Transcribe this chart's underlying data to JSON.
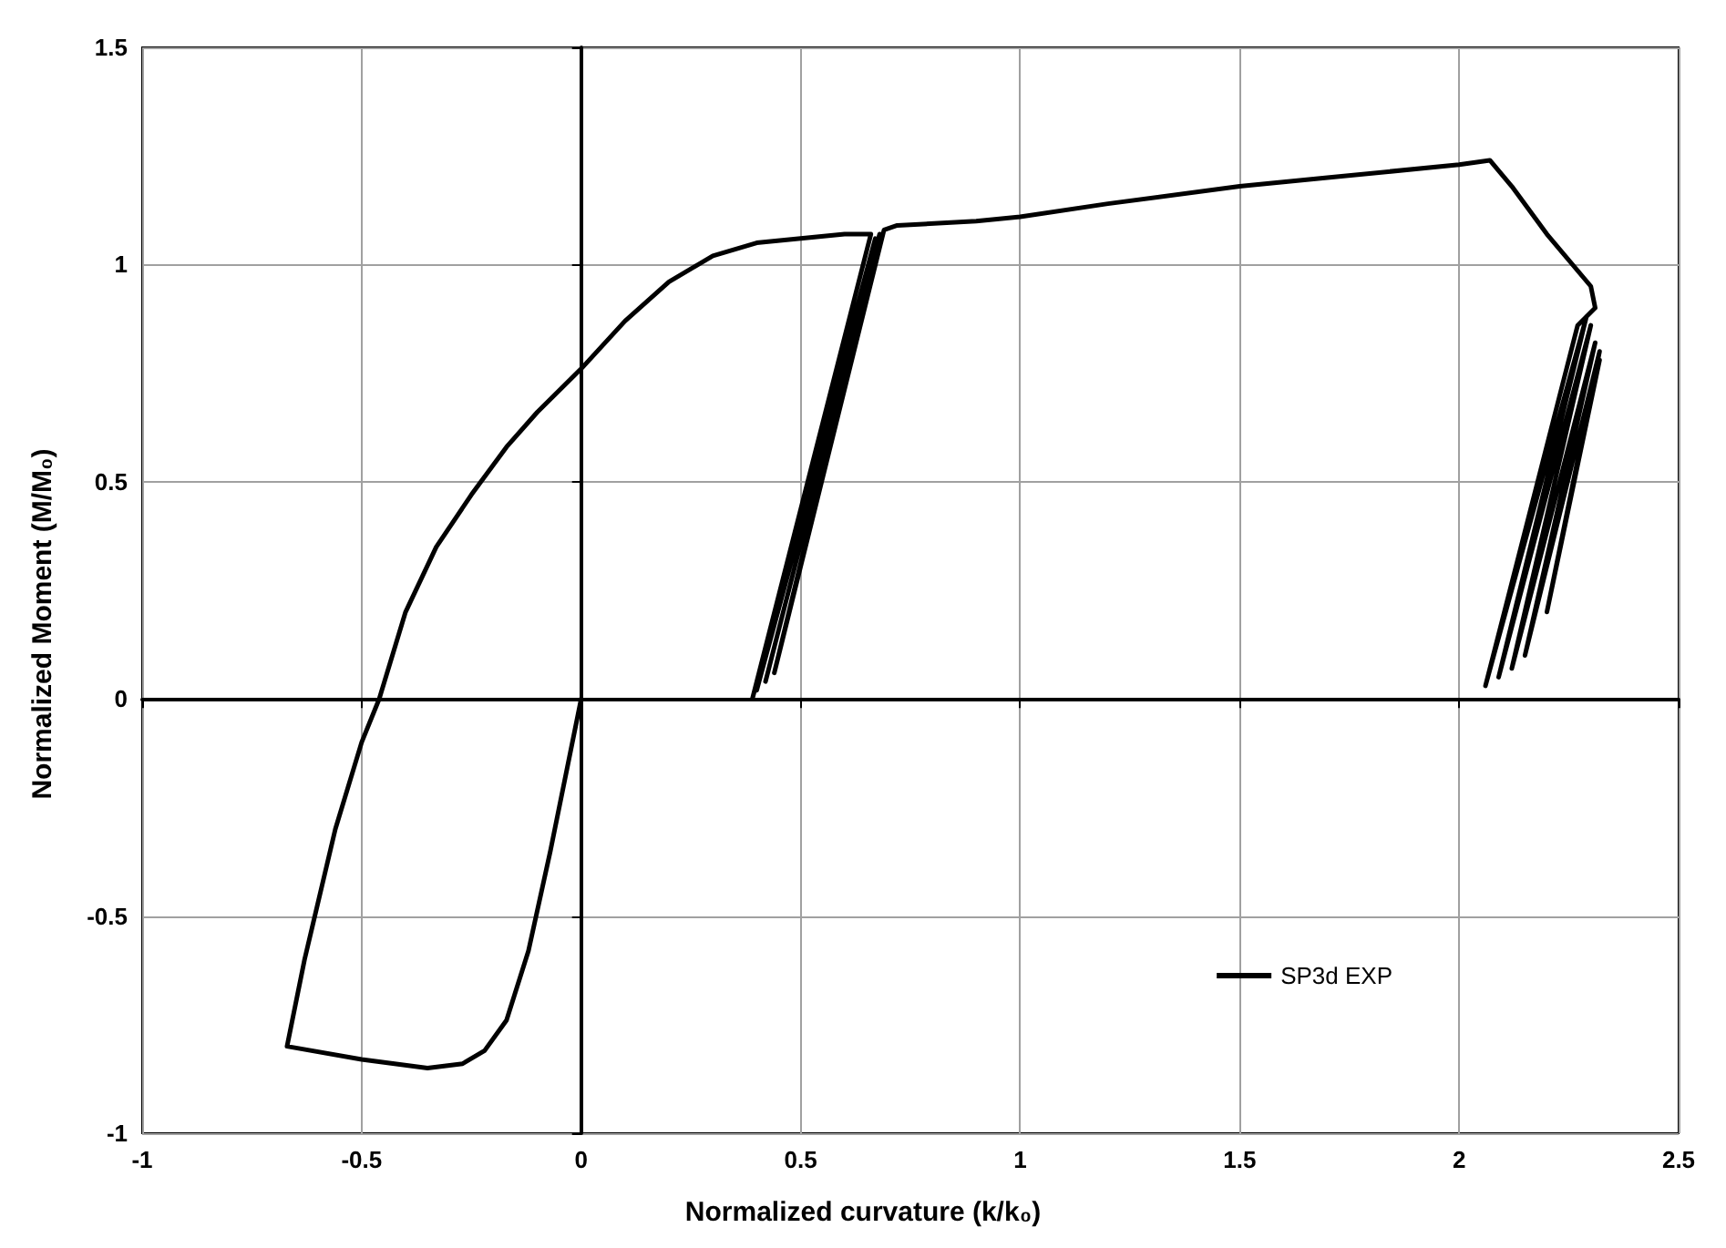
{
  "chart_data": {
    "type": "line",
    "xlabel": "Normalized curvature (k/k₀)",
    "ylabel": "Normalized Moment (M/M₀)",
    "xlim": [
      -1,
      2.5
    ],
    "xticks": [
      -1,
      -0.5,
      0,
      0.5,
      1,
      1.5,
      2,
      2.5
    ],
    "ylim": [
      -1,
      1.5
    ],
    "yticks": [
      -1,
      -0.5,
      0,
      0.5,
      1,
      1.5
    ],
    "grid": true,
    "legend": "bottom right",
    "marker": "none",
    "line_style": "solid",
    "series": [
      {
        "name": "SP3d EXP",
        "color": "#000000",
        "x": [
          0,
          -0.03,
          -0.07,
          -0.12,
          -0.17,
          -0.22,
          -0.27,
          -0.35,
          -0.5,
          -0.67,
          -0.63,
          -0.56,
          -0.5,
          -0.46,
          -0.43,
          -0.4,
          -0.33,
          -0.25,
          -0.17,
          -0.1,
          0,
          0.1,
          0.2,
          0.3,
          0.4,
          0.5,
          0.6,
          0.66,
          0.39,
          0.67,
          0.4,
          0.68,
          0.42,
          0.68,
          0.44,
          0.69,
          0.72,
          0.9,
          1,
          1.2,
          1.5,
          1.7,
          2,
          2.07,
          2.12,
          2.2,
          2.3,
          2.31,
          2.27,
          2.06,
          2.29,
          2.09,
          2.3,
          2.12,
          2.31,
          2.15,
          2.32,
          2.2,
          2.32
        ],
        "values": [
          0,
          -0.15,
          -0.35,
          -0.58,
          -0.74,
          -0.81,
          -0.84,
          -0.85,
          -0.83,
          -0.8,
          -0.6,
          -0.3,
          -0.1,
          0,
          0.1,
          0.2,
          0.35,
          0.47,
          0.58,
          0.66,
          0.76,
          0.87,
          0.96,
          1.02,
          1.05,
          1.06,
          1.07,
          1.07,
          0,
          1.06,
          0.02,
          1.07,
          0.04,
          1.07,
          0.06,
          1.08,
          1.09,
          1.1,
          1.11,
          1.14,
          1.18,
          1.2,
          1.23,
          1.24,
          1.18,
          1.07,
          0.95,
          0.9,
          0.86,
          0.03,
          0.88,
          0.05,
          0.86,
          0.07,
          0.82,
          0.1,
          0.8,
          0.2,
          0.78
        ]
      }
    ]
  }
}
